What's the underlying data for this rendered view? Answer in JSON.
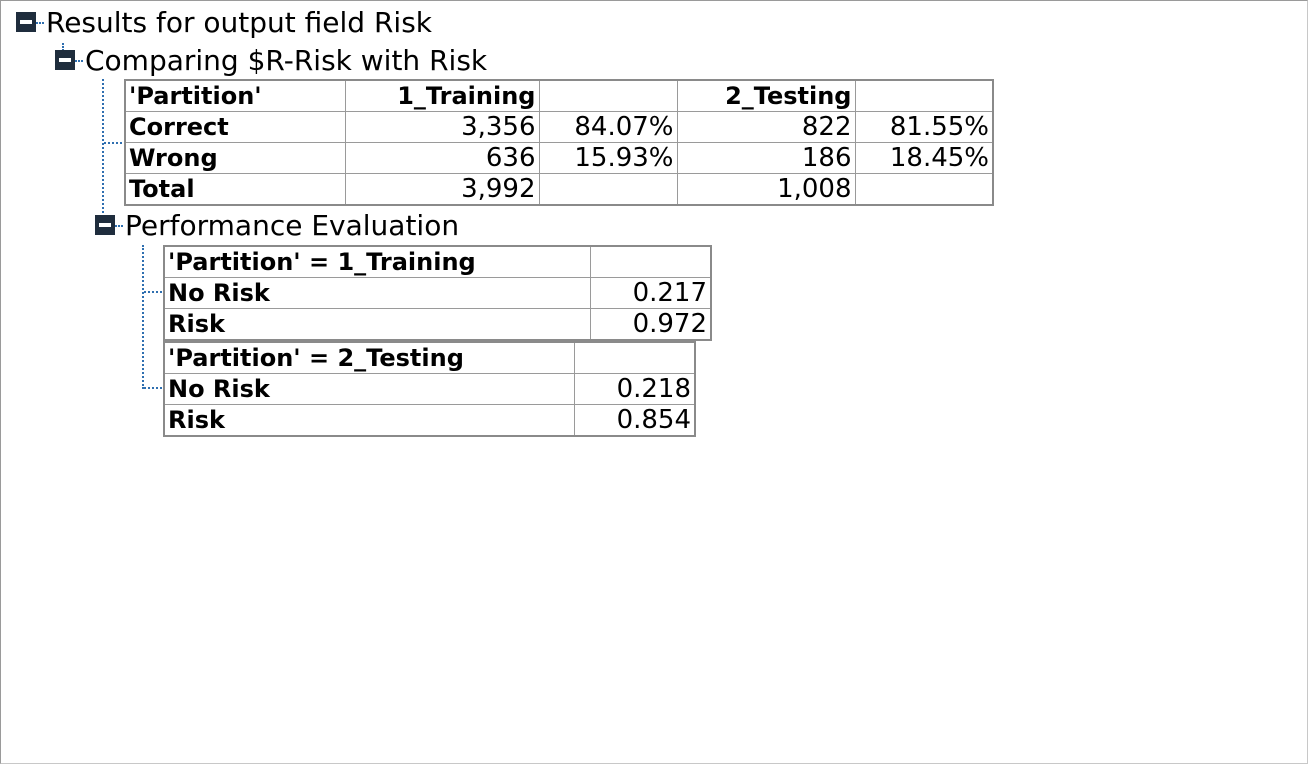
{
  "tree": {
    "root_label": "Results for output field Risk",
    "comparison_label": "Comparing $R-Risk with Risk",
    "performance_label": "Performance Evaluation"
  },
  "comparison_table": {
    "corner": "'Partition'",
    "col1": "1_Training",
    "col3": "2_Testing",
    "rows": [
      {
        "label": "Correct",
        "train_n": "3,356",
        "train_pct": "84.07%",
        "test_n": "822",
        "test_pct": "81.55%"
      },
      {
        "label": "Wrong",
        "train_n": "636",
        "train_pct": "15.93%",
        "test_n": "186",
        "test_pct": "18.45%"
      },
      {
        "label": "Total",
        "train_n": "3,992",
        "train_pct": "",
        "test_n": "1,008",
        "test_pct": ""
      }
    ]
  },
  "performance": {
    "training": {
      "header": "'Partition' = 1_Training",
      "rows": [
        {
          "label": "No Risk",
          "value": "0.217"
        },
        {
          "label": "Risk",
          "value": "0.972"
        }
      ]
    },
    "testing": {
      "header": "'Partition' = 2_Testing",
      "rows": [
        {
          "label": "No Risk",
          "value": "0.218"
        },
        {
          "label": "Risk",
          "value": "0.854"
        }
      ]
    }
  }
}
